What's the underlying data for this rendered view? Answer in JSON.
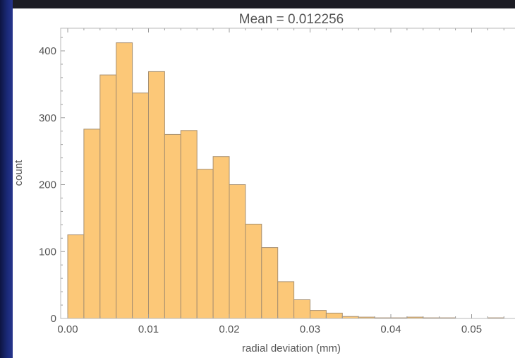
{
  "colors": {
    "bar_fill": "#fcc878",
    "bar_stroke": "#a89070",
    "frame_background": "#1b2a7a",
    "plot_background": "#ffffff"
  },
  "chart_data": {
    "type": "bar",
    "title": "Mean = 0.012256",
    "xlabel": "radial deviation (mm)",
    "ylabel": "count",
    "bin_width": 0.002,
    "bins_start": 0.0,
    "values": [
      125,
      283,
      364,
      412,
      337,
      369,
      275,
      281,
      223,
      242,
      200,
      141,
      106,
      55,
      28,
      12,
      8,
      3,
      2,
      1,
      1,
      2,
      1,
      1,
      0,
      0,
      1,
      0,
      1
    ],
    "xlim": [
      0.0,
      0.056
    ],
    "ylim": [
      0,
      430
    ],
    "xticks": [
      "0.00",
      "0.01",
      "0.02",
      "0.03",
      "0.04",
      "0.05"
    ],
    "yticks": [
      "0",
      "100",
      "200",
      "300",
      "400"
    ],
    "grid": false
  }
}
